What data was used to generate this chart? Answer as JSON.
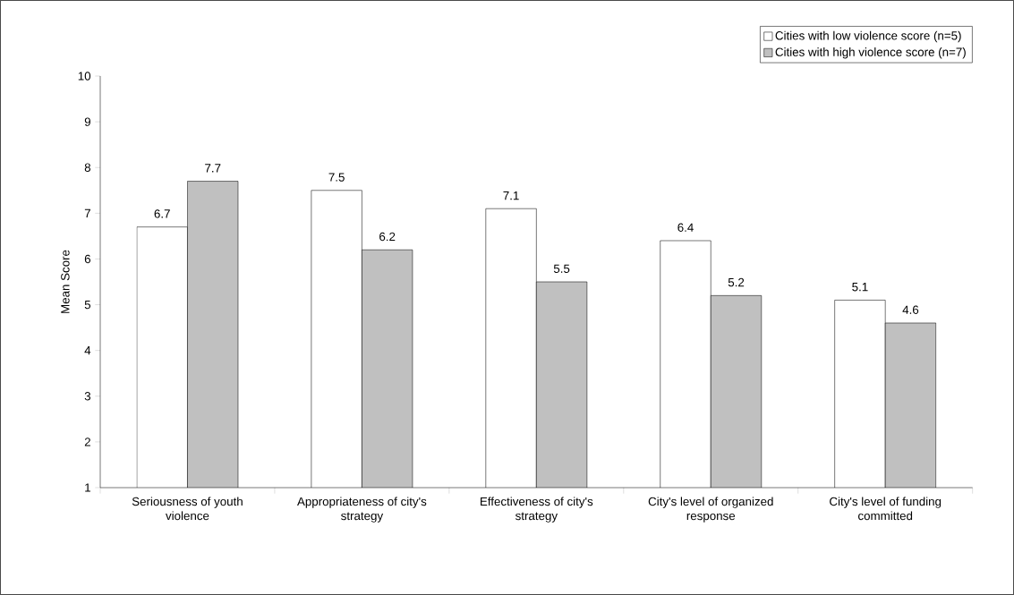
{
  "chart_data": {
    "type": "bar",
    "ylabel": "Mean Score",
    "categories": [
      "Seriousness of youth violence",
      "Appropriateness of city's strategy",
      "Effectiveness of city's strategy",
      "City's level of organized response",
      "City's level of funding committed"
    ],
    "series": [
      {
        "name": "Cities with low violence score (n=5)",
        "color": "#ffffff",
        "values": [
          6.7,
          7.5,
          7.1,
          6.4,
          5.1
        ]
      },
      {
        "name": "Cities with high violence score (n=7)",
        "color": "#c0c0c0",
        "values": [
          7.7,
          6.2,
          5.5,
          5.2,
          4.6
        ]
      }
    ],
    "ylim": [
      1,
      10
    ],
    "yticks": [
      1,
      2,
      3,
      4,
      5,
      6,
      7,
      8,
      9,
      10
    ],
    "data_labels": true,
    "legend": "top right"
  }
}
